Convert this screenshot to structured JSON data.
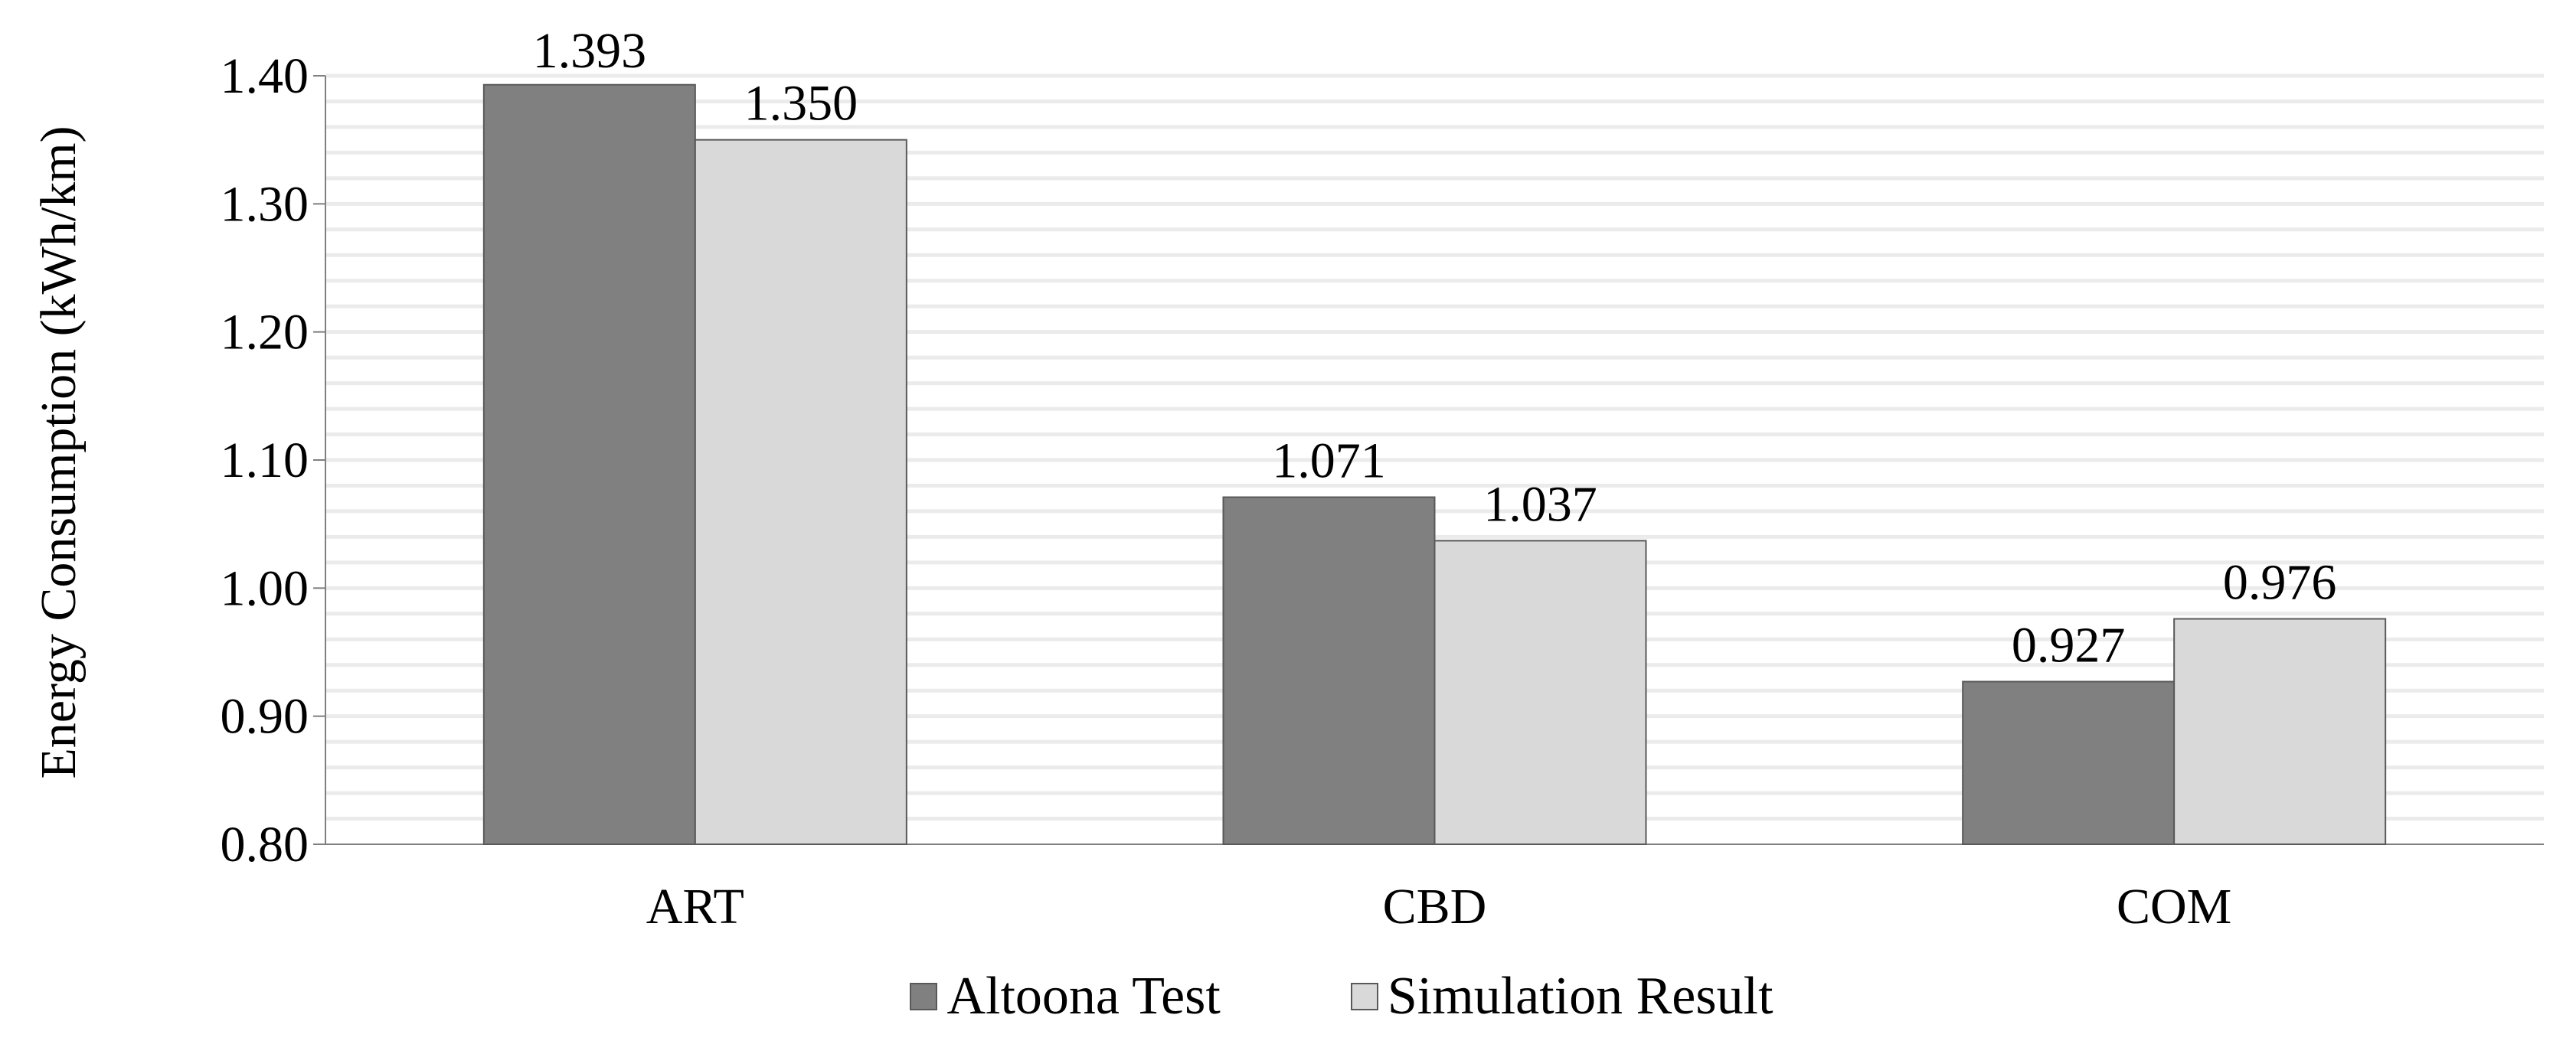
{
  "colors": {
    "altoona": "#808080",
    "simulation": "#d9d9d9",
    "bar_border": "#595959",
    "grid": "#ebebeb",
    "axis": "#7f7f7f"
  },
  "chart_data": {
    "type": "bar",
    "title": "",
    "xlabel": "",
    "ylabel": "Energy Consumption (kWh/km)",
    "categories": [
      "ART",
      "CBD",
      "COM"
    ],
    "series": [
      {
        "name": "Altoona Test",
        "values": [
          1.393,
          1.071,
          0.927
        ],
        "value_labels": [
          "1.393",
          "1.071",
          "0.927"
        ],
        "color": "#808080"
      },
      {
        "name": "Simulation Result",
        "values": [
          1.35,
          1.037,
          0.976
        ],
        "value_labels": [
          "1.350",
          "1.037",
          "0.976"
        ],
        "color": "#d9d9d9"
      }
    ],
    "ylim": [
      0.8,
      1.4
    ],
    "yticks": [
      0.8,
      0.9,
      1.0,
      1.1,
      1.2,
      1.3,
      1.4
    ],
    "ytick_labels": [
      "0.80",
      "0.90",
      "1.00",
      "1.10",
      "1.20",
      "1.30",
      "1.40"
    ],
    "grid": true,
    "minor_grid_step": 0.02,
    "legend_position": "bottom"
  }
}
